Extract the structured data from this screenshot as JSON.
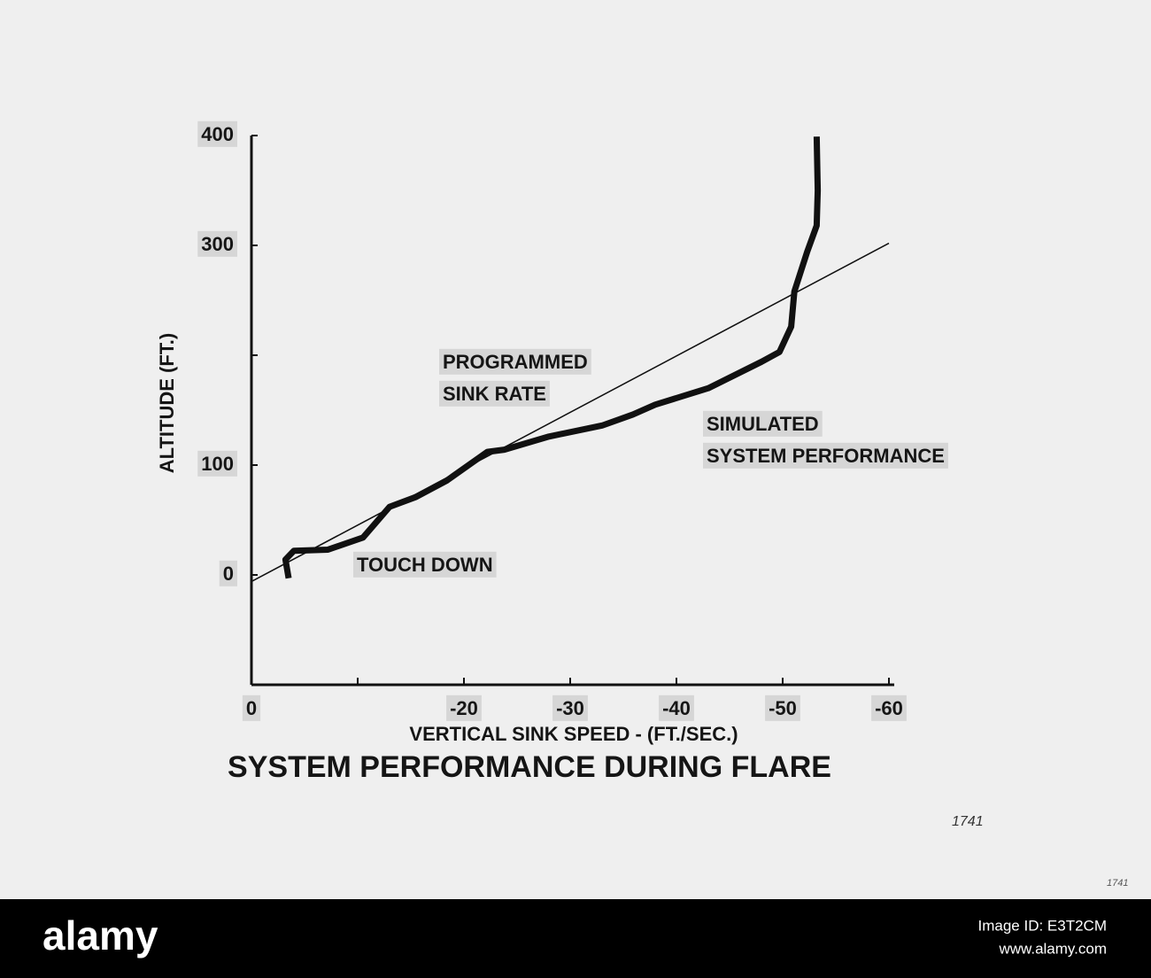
{
  "chart_data": {
    "type": "line",
    "title": "SYSTEM PERFORMANCE DURING FLARE",
    "x_label": "VERTICAL SINK SPEED - (FT./SEC.)",
    "y_label": "ALTITUDE (FT.)",
    "xlim": [
      0,
      -60
    ],
    "ylim": [
      -100,
      400
    ],
    "xticks": [
      0,
      {
        "value": -10,
        "label": null
      },
      -20,
      -30,
      -40,
      -50,
      -60
    ],
    "yticks": [
      0,
      100,
      {
        "value": 200,
        "label": null
      },
      300,
      400
    ],
    "series": [
      {
        "color": "#111111",
        "x": [
          0,
          -60
        ],
        "values": [
          -6,
          302
        ]
      },
      {
        "color": "#111111",
        "x": [
          -3.5,
          -3.2,
          -4,
          -7.2,
          -10.5,
          -13,
          -15.5,
          -18.4,
          -22.2,
          -23.8,
          -28,
          -33,
          -35.9,
          -38,
          -43,
          -48,
          -49.7,
          -50.8,
          -51.1,
          -52.3,
          -53.2,
          -53.3,
          -53.2
        ],
        "values": [
          -3,
          14,
          22,
          23,
          34,
          62,
          71,
          86,
          112,
          114,
          126,
          136,
          146,
          155,
          170,
          194,
          203,
          226,
          258,
          294,
          318,
          350,
          399
        ]
      }
    ],
    "annotations": [
      [
        "PROGRAMMED",
        "SINK RATE"
      ],
      [
        "SIMULATED",
        "SYSTEM PERFORMANCE"
      ],
      [
        "TOUCH DOWN"
      ]
    ]
  },
  "handwriting": [
    "1741",
    "1741"
  ],
  "footer": {
    "brand": "alamy",
    "image_id": "Image ID: E3T2CM",
    "url": "www.alamy.com"
  }
}
